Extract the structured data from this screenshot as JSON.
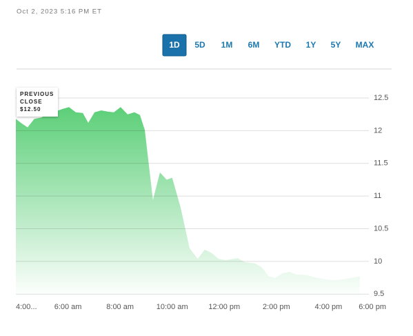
{
  "timestamp": "Oct 2, 2023 5:16 PM ET",
  "ranges": [
    "1D",
    "5D",
    "1M",
    "6M",
    "YTD",
    "1Y",
    "5Y",
    "MAX"
  ],
  "selected_range_index": 0,
  "chart_data": {
    "type": "area",
    "annotation": [
      "PREVIOUS",
      "CLOSE",
      "$12.50"
    ],
    "x": [
      4.0,
      4.19,
      4.45,
      4.71,
      4.98,
      5.24,
      5.51,
      5.77,
      6.04,
      6.3,
      6.57,
      6.78,
      7.02,
      7.28,
      7.54,
      7.76,
      8.02,
      8.29,
      8.55,
      8.76,
      8.95,
      9.26,
      9.53,
      9.79,
      10.0,
      10.32,
      10.67,
      10.98,
      11.25,
      11.51,
      11.78,
      12.04,
      12.52,
      12.78,
      13.18,
      13.44,
      13.71,
      13.97,
      14.24,
      14.5,
      14.77,
      15.16,
      15.56,
      15.96,
      16.22,
      16.62,
      16.89,
      17.2
    ],
    "values": [
      12.18,
      12.12,
      12.05,
      12.18,
      12.2,
      12.26,
      12.29,
      12.33,
      12.36,
      12.28,
      12.27,
      12.12,
      12.28,
      12.31,
      12.29,
      12.28,
      12.36,
      12.25,
      12.28,
      12.24,
      12.01,
      10.94,
      11.36,
      11.25,
      11.28,
      10.83,
      10.2,
      10.04,
      10.18,
      10.13,
      10.04,
      10.02,
      10.05,
      9.99,
      9.97,
      9.91,
      9.77,
      9.75,
      9.82,
      9.84,
      9.8,
      9.79,
      9.75,
      9.72,
      9.71,
      9.73,
      9.75,
      9.77
    ],
    "color": "#5ccf78",
    "xlim": [
      4,
      18
    ],
    "xticks": [
      {
        "value": 4,
        "label": "4:00..."
      },
      {
        "value": 6,
        "label": "6:00 am"
      },
      {
        "value": 8,
        "label": "8:00 am"
      },
      {
        "value": 10,
        "label": "10:00 am"
      },
      {
        "value": 12,
        "label": "12:00 pm"
      },
      {
        "value": 14,
        "label": "2:00 pm"
      },
      {
        "value": 16,
        "label": "4:00 pm"
      },
      {
        "value": 18,
        "label": "6:00 pm"
      }
    ],
    "ylim": [
      9.44,
      12.5
    ],
    "yticks": [
      12.5,
      12,
      11.5,
      11,
      10.5,
      10,
      9.5
    ],
    "grid": true
  }
}
